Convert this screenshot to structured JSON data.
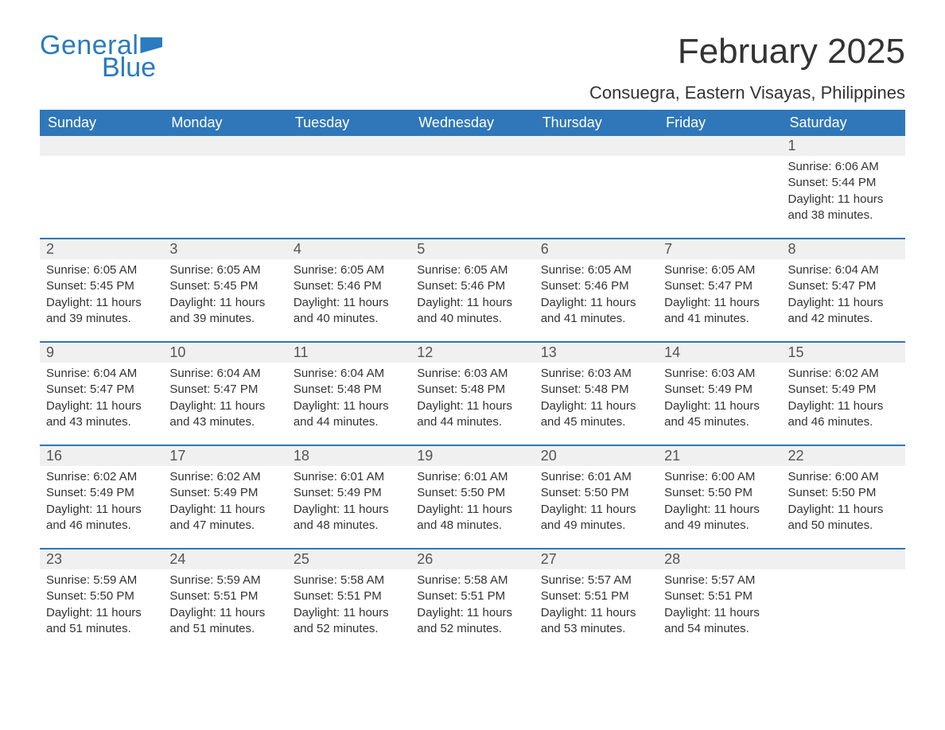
{
  "logo": {
    "text1": "General",
    "text2": "Blue"
  },
  "title": "February 2025",
  "location": "Consuegra, Eastern Visayas, Philippines",
  "colors": {
    "header_bg": "#2f77b8",
    "header_text": "#ffffff",
    "daynum_bg": "#f0f0f0",
    "row_divider": "#2f77b8",
    "body_text": "#333333",
    "logo_color": "#2a7bbf",
    "page_bg": "#ffffff"
  },
  "weekdays": [
    "Sunday",
    "Monday",
    "Tuesday",
    "Wednesday",
    "Thursday",
    "Friday",
    "Saturday"
  ],
  "weeks": [
    [
      null,
      null,
      null,
      null,
      null,
      null,
      {
        "d": "1",
        "sr": "6:06 AM",
        "ss": "5:44 PM",
        "dl": "11 hours and 38 minutes."
      }
    ],
    [
      {
        "d": "2",
        "sr": "6:05 AM",
        "ss": "5:45 PM",
        "dl": "11 hours and 39 minutes."
      },
      {
        "d": "3",
        "sr": "6:05 AM",
        "ss": "5:45 PM",
        "dl": "11 hours and 39 minutes."
      },
      {
        "d": "4",
        "sr": "6:05 AM",
        "ss": "5:46 PM",
        "dl": "11 hours and 40 minutes."
      },
      {
        "d": "5",
        "sr": "6:05 AM",
        "ss": "5:46 PM",
        "dl": "11 hours and 40 minutes."
      },
      {
        "d": "6",
        "sr": "6:05 AM",
        "ss": "5:46 PM",
        "dl": "11 hours and 41 minutes."
      },
      {
        "d": "7",
        "sr": "6:05 AM",
        "ss": "5:47 PM",
        "dl": "11 hours and 41 minutes."
      },
      {
        "d": "8",
        "sr": "6:04 AM",
        "ss": "5:47 PM",
        "dl": "11 hours and 42 minutes."
      }
    ],
    [
      {
        "d": "9",
        "sr": "6:04 AM",
        "ss": "5:47 PM",
        "dl": "11 hours and 43 minutes."
      },
      {
        "d": "10",
        "sr": "6:04 AM",
        "ss": "5:47 PM",
        "dl": "11 hours and 43 minutes."
      },
      {
        "d": "11",
        "sr": "6:04 AM",
        "ss": "5:48 PM",
        "dl": "11 hours and 44 minutes."
      },
      {
        "d": "12",
        "sr": "6:03 AM",
        "ss": "5:48 PM",
        "dl": "11 hours and 44 minutes."
      },
      {
        "d": "13",
        "sr": "6:03 AM",
        "ss": "5:48 PM",
        "dl": "11 hours and 45 minutes."
      },
      {
        "d": "14",
        "sr": "6:03 AM",
        "ss": "5:49 PM",
        "dl": "11 hours and 45 minutes."
      },
      {
        "d": "15",
        "sr": "6:02 AM",
        "ss": "5:49 PM",
        "dl": "11 hours and 46 minutes."
      }
    ],
    [
      {
        "d": "16",
        "sr": "6:02 AM",
        "ss": "5:49 PM",
        "dl": "11 hours and 46 minutes."
      },
      {
        "d": "17",
        "sr": "6:02 AM",
        "ss": "5:49 PM",
        "dl": "11 hours and 47 minutes."
      },
      {
        "d": "18",
        "sr": "6:01 AM",
        "ss": "5:49 PM",
        "dl": "11 hours and 48 minutes."
      },
      {
        "d": "19",
        "sr": "6:01 AM",
        "ss": "5:50 PM",
        "dl": "11 hours and 48 minutes."
      },
      {
        "d": "20",
        "sr": "6:01 AM",
        "ss": "5:50 PM",
        "dl": "11 hours and 49 minutes."
      },
      {
        "d": "21",
        "sr": "6:00 AM",
        "ss": "5:50 PM",
        "dl": "11 hours and 49 minutes."
      },
      {
        "d": "22",
        "sr": "6:00 AM",
        "ss": "5:50 PM",
        "dl": "11 hours and 50 minutes."
      }
    ],
    [
      {
        "d": "23",
        "sr": "5:59 AM",
        "ss": "5:50 PM",
        "dl": "11 hours and 51 minutes."
      },
      {
        "d": "24",
        "sr": "5:59 AM",
        "ss": "5:51 PM",
        "dl": "11 hours and 51 minutes."
      },
      {
        "d": "25",
        "sr": "5:58 AM",
        "ss": "5:51 PM",
        "dl": "11 hours and 52 minutes."
      },
      {
        "d": "26",
        "sr": "5:58 AM",
        "ss": "5:51 PM",
        "dl": "11 hours and 52 minutes."
      },
      {
        "d": "27",
        "sr": "5:57 AM",
        "ss": "5:51 PM",
        "dl": "11 hours and 53 minutes."
      },
      {
        "d": "28",
        "sr": "5:57 AM",
        "ss": "5:51 PM",
        "dl": "11 hours and 54 minutes."
      },
      null
    ]
  ],
  "labels": {
    "sunrise": "Sunrise:",
    "sunset": "Sunset:",
    "daylight": "Daylight:"
  }
}
